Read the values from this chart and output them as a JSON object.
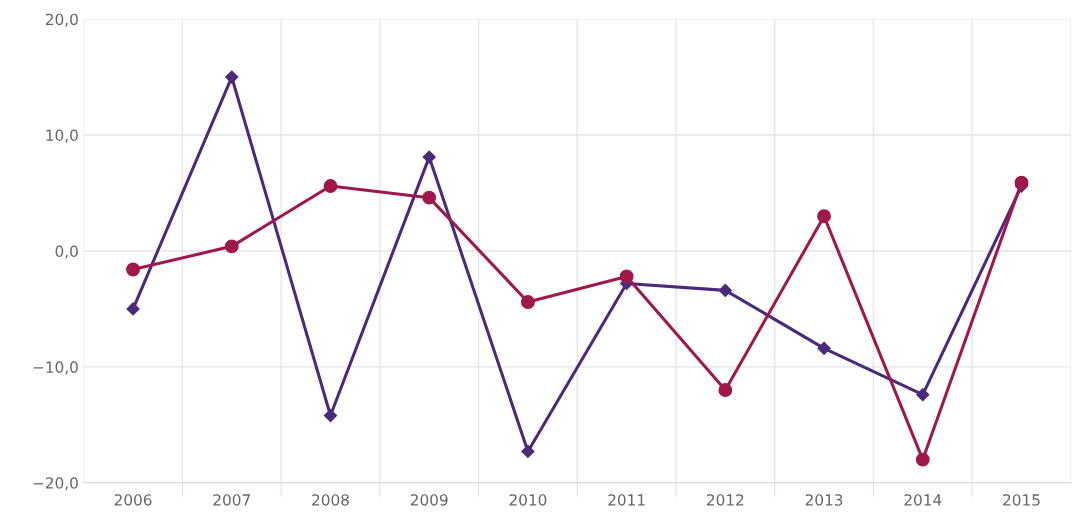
{
  "chart_data": {
    "type": "line",
    "categories": [
      "2006",
      "2007",
      "2008",
      "2009",
      "2010",
      "2011",
      "2012",
      "2013",
      "2014",
      "2015"
    ],
    "series": [
      {
        "color": "#4b2a7b",
        "marker": "diamond",
        "values": [
          -5.0,
          15.0,
          -14.2,
          8.1,
          -17.3,
          -2.8,
          -3.4,
          -8.4,
          -12.4,
          5.6
        ]
      },
      {
        "color": "#a0174a",
        "marker": "circle",
        "values": [
          -1.6,
          0.4,
          5.6,
          4.6,
          -4.4,
          -2.2,
          -12.0,
          3.0,
          -18.0,
          5.9
        ]
      }
    ],
    "ylim": [
      -20,
      20
    ],
    "yticks": [
      {
        "value": -20,
        "label": "−20,0"
      },
      {
        "value": -10,
        "label": "−10,0"
      },
      {
        "value": 0,
        "label": "0,0"
      },
      {
        "value": 10,
        "label": "10,0"
      },
      {
        "value": 20,
        "label": "20,0"
      }
    ],
    "grid": true,
    "line_style": "solid"
  }
}
